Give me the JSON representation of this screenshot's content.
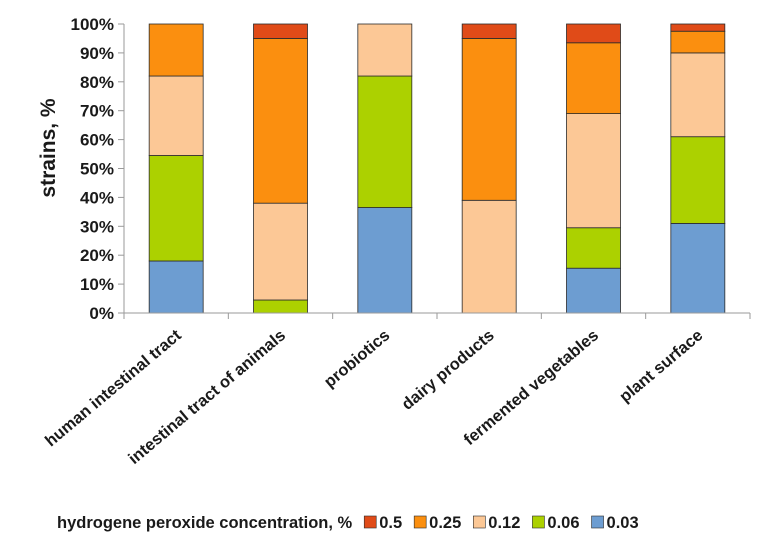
{
  "chart_data": {
    "type": "bar",
    "stacked": true,
    "title": "",
    "xlabel": "",
    "ylabel": "strains, %",
    "ylim": [
      0,
      100
    ],
    "yticks": [
      "0%",
      "10%",
      "20%",
      "30%",
      "40%",
      "50%",
      "60%",
      "70%",
      "80%",
      "90%",
      "100%"
    ],
    "categories": [
      "human intestinal tract",
      "intestinal tract of animals",
      "probiotics",
      "dairy products",
      "fermented vegetables",
      "plant surface"
    ],
    "series": [
      {
        "name": "0.03",
        "color": "#6d9dd1",
        "values": [
          18,
          0,
          36.5,
          0,
          15.5,
          31
        ]
      },
      {
        "name": "0.06",
        "color": "#acd100",
        "values": [
          36.5,
          4.5,
          45.5,
          0,
          14,
          30
        ]
      },
      {
        "name": "0.12",
        "color": "#fcc896",
        "values": [
          27.5,
          33.5,
          18,
          39,
          39.5,
          29
        ]
      },
      {
        "name": "0.25",
        "color": "#fb8f0f",
        "values": [
          18,
          57,
          0,
          56,
          24.5,
          7.5
        ]
      },
      {
        "name": "0.5",
        "color": "#e04b18",
        "values": [
          0,
          5,
          0,
          5,
          6.5,
          2.5
        ]
      }
    ],
    "legend": {
      "title": "hydrogene peroxide concentration, %",
      "position": "bottom",
      "order": [
        "0.5",
        "0.25",
        "0.12",
        "0.06",
        "0.03"
      ]
    },
    "grid": false
  }
}
